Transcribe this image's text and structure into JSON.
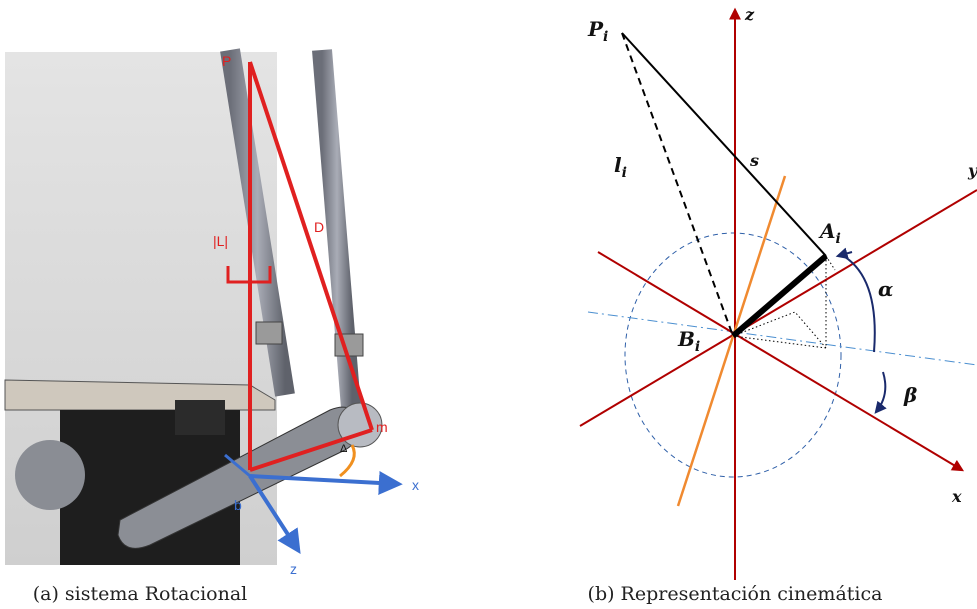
{
  "figure_a": {
    "caption": "(a) sistema Rotacional",
    "labels": {
      "P": "P",
      "L": "|L|",
      "D": "D",
      "m": "m",
      "delta": "Δ",
      "b": "b",
      "x": "x",
      "z": "z"
    }
  },
  "figure_b": {
    "caption": "(b) Representación cinemática",
    "labels": {
      "P": {
        "base": "P",
        "sub": "i"
      },
      "z": "z",
      "s": "s",
      "l": {
        "base": "l",
        "sub": "i"
      },
      "y": "y",
      "A": {
        "base": "A",
        "sub": "i"
      },
      "alpha": "α",
      "B": {
        "base": "B",
        "sub": "i"
      },
      "beta": "β",
      "x": "x"
    }
  }
}
